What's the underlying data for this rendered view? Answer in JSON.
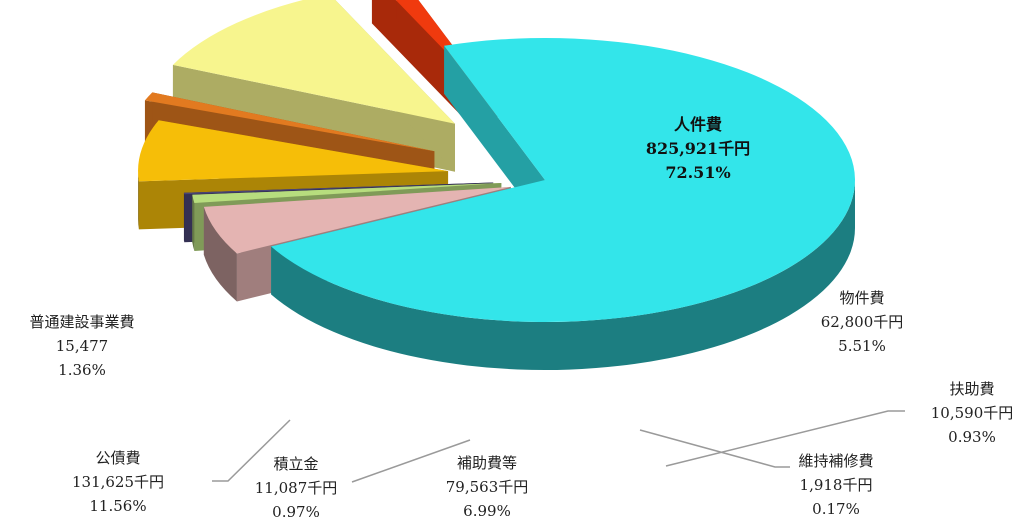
{
  "chart_data": {
    "type": "pie",
    "unit": "千円",
    "slices": [
      {
        "name": "人件費",
        "amount": "825,921千円",
        "percent": "72.51%",
        "value": 825921,
        "color": "#33E5EA"
      },
      {
        "name": "物件費",
        "amount": "62,800千円",
        "percent": "5.51%",
        "value": 62800,
        "color": "#E4B4B2"
      },
      {
        "name": "扶助費",
        "amount": "10,590千円",
        "percent": "0.93%",
        "value": 10590,
        "color": "#B7DD7E"
      },
      {
        "name": "維持補修費",
        "amount": "1,918千円",
        "percent": "0.17%",
        "value": 1918,
        "color": "#4A4476"
      },
      {
        "name": "補助費等",
        "amount": "79,563千円",
        "percent": "6.99%",
        "value": 79563,
        "color": "#F6BE08"
      },
      {
        "name": "積立金",
        "amount": "11,087千円",
        "percent": "0.97%",
        "value": 11087,
        "color": "#E27A20"
      },
      {
        "name": "公債費",
        "amount": "131,625千円",
        "percent": "11.56%",
        "value": 131625,
        "color": "#F7F58E"
      },
      {
        "name": "普通建設事業費",
        "amount": "15,477",
        "percent": "1.36%",
        "value": 15477,
        "color": "#F03A0E"
      }
    ]
  }
}
